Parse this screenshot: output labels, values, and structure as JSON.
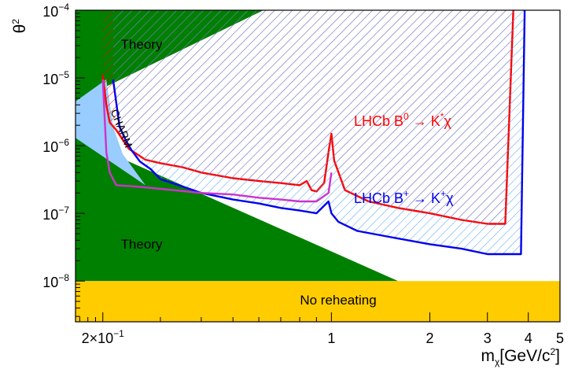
{
  "chart_data": {
    "type": "line",
    "x_scale": "log",
    "y_scale": "log",
    "xlim": [
      0.165,
      5.0
    ],
    "ylim": [
      2.5e-09,
      0.0001
    ],
    "xlabel": {
      "main": "m",
      "sub": "χ",
      "units_pre": "[GeV/c",
      "units_sup": "2",
      "units_post": "]"
    },
    "ylabel": {
      "main": "θ",
      "sup": "2"
    },
    "x_ticks": [
      {
        "value": 0.2,
        "label": "2×10",
        "sup": "−1"
      },
      {
        "value": 1,
        "label": "1"
      },
      {
        "value": 2,
        "label": "2"
      },
      {
        "value": 3,
        "label": "3"
      },
      {
        "value": 4,
        "label": "4"
      },
      {
        "value": 5,
        "label": "5"
      }
    ],
    "y_ticks": [
      {
        "value": 1e-08,
        "label": "10",
        "sup": "−8"
      },
      {
        "value": 1e-07,
        "label": "10",
        "sup": "−7"
      },
      {
        "value": 1e-06,
        "label": "10",
        "sup": "−6"
      },
      {
        "value": 1e-05,
        "label": "10",
        "sup": "−5"
      },
      {
        "value": 0.0001,
        "label": "10",
        "sup": "−4"
      }
    ],
    "regions": [
      {
        "name": "Theory",
        "label": "Theory",
        "color": "#008000",
        "polygon": [
          [
            0.165,
            0.0001
          ],
          [
            0.165,
            4.5e-06
          ],
          [
            0.62,
            0.0001
          ]
        ]
      },
      {
        "name": "Theory",
        "label": "Theory",
        "color": "#008000",
        "polygon": [
          [
            0.165,
            1.3e-06
          ],
          [
            1.6,
            1e-08
          ],
          [
            0.165,
            1e-08
          ]
        ]
      },
      {
        "name": "CHARM",
        "label": "CHARM",
        "color": "#99ccff",
        "polygon": [
          [
            0.165,
            4.5e-06
          ],
          [
            0.205,
            9.5e-06
          ],
          [
            0.215,
            1.9e-06
          ],
          [
            0.23,
            7.5e-07
          ],
          [
            0.27,
            2.6e-07
          ],
          [
            0.165,
            1.3e-06
          ]
        ]
      },
      {
        "name": "No reheating",
        "label": "No reheating",
        "color": "#ffcc00",
        "polygon": [
          [
            0.165,
            1e-08
          ],
          [
            5.0,
            1e-08
          ],
          [
            5.0,
            2.5e-09
          ],
          [
            0.165,
            2.5e-09
          ]
        ]
      }
    ],
    "series": [
      {
        "name": "LHCb B⁰ → K*⁰χ",
        "color": "#ff0000",
        "label": {
          "main": "LHCb B",
          "sup1": "0",
          "arrow": " → K",
          "sup2": "*",
          "tail": "χ"
        },
        "points": [
          [
            0.2,
            1.1e-05
          ],
          [
            0.205,
            4e-06
          ],
          [
            0.21,
            2.2e-06
          ],
          [
            0.22,
            1.7e-06
          ],
          [
            0.24,
            9e-07
          ],
          [
            0.27,
            6.2e-07
          ],
          [
            0.3,
            5.5e-07
          ],
          [
            0.35,
            4.8e-07
          ],
          [
            0.4,
            4e-07
          ],
          [
            0.5,
            3.3e-07
          ],
          [
            0.6,
            3e-07
          ],
          [
            0.7,
            2.8e-07
          ],
          [
            0.8,
            2.6e-07
          ],
          [
            0.84,
            3e-07
          ],
          [
            0.87,
            2.2e-07
          ],
          [
            0.9,
            2.1e-07
          ],
          [
            0.95,
            2.8e-07
          ],
          [
            0.98,
            8e-07
          ],
          [
            1.0,
            1.5e-06
          ],
          [
            1.02,
            6e-07
          ],
          [
            1.1,
            2.2e-07
          ],
          [
            1.3,
            1.5e-07
          ],
          [
            1.6,
            1.2e-07
          ],
          [
            2.0,
            1e-07
          ],
          [
            2.5,
            8e-08
          ],
          [
            3.0,
            7e-08
          ],
          [
            3.4,
            7e-08
          ],
          [
            3.6,
            0.0001
          ]
        ]
      },
      {
        "name": "LHCb B⁺ → K⁺χ",
        "color": "#0000ee",
        "label": {
          "main": "LHCb B",
          "sup1": "+",
          "arrow": " → K",
          "sup2": "+",
          "tail": "χ"
        },
        "points": [
          [
            0.215,
            9.5e-06
          ],
          [
            0.225,
            1.9e-06
          ],
          [
            0.235,
            1.2e-06
          ],
          [
            0.245,
            8.5e-07
          ],
          [
            0.26,
            5.8e-07
          ],
          [
            0.28,
            4.5e-07
          ],
          [
            0.3,
            3.2e-07
          ],
          [
            0.35,
            2.5e-07
          ],
          [
            0.4,
            2e-07
          ],
          [
            0.5,
            1.6e-07
          ],
          [
            0.6,
            1.4e-07
          ],
          [
            0.7,
            1.2e-07
          ],
          [
            0.8,
            1.1e-07
          ],
          [
            0.9,
            1e-07
          ],
          [
            0.98,
            1.5e-07
          ],
          [
            1.0,
            1e-07
          ],
          [
            1.05,
            7.5e-08
          ],
          [
            1.2,
            5.5e-08
          ],
          [
            1.5,
            4.5e-08
          ],
          [
            2.0,
            3.5e-08
          ],
          [
            2.5,
            3e-08
          ],
          [
            3.0,
            2.5e-08
          ],
          [
            3.8,
            2.5e-08
          ],
          [
            3.9,
            0.0001
          ]
        ]
      },
      {
        "name": "",
        "color": "#cc33cc",
        "points": [
          [
            0.2,
            9.5e-06
          ],
          [
            0.205,
            8e-07
          ],
          [
            0.21,
            4e-07
          ],
          [
            0.22,
            2.6e-07
          ],
          [
            0.25,
            2.5e-07
          ],
          [
            0.3,
            2.3e-07
          ],
          [
            0.4,
            2e-07
          ],
          [
            0.5,
            1.9e-07
          ],
          [
            0.6,
            1.7e-07
          ],
          [
            0.7,
            1.6e-07
          ],
          [
            0.8,
            1.5e-07
          ],
          [
            0.9,
            1.5e-07
          ],
          [
            0.98,
            2e-07
          ],
          [
            1.0,
            4e-07
          ]
        ]
      }
    ]
  }
}
